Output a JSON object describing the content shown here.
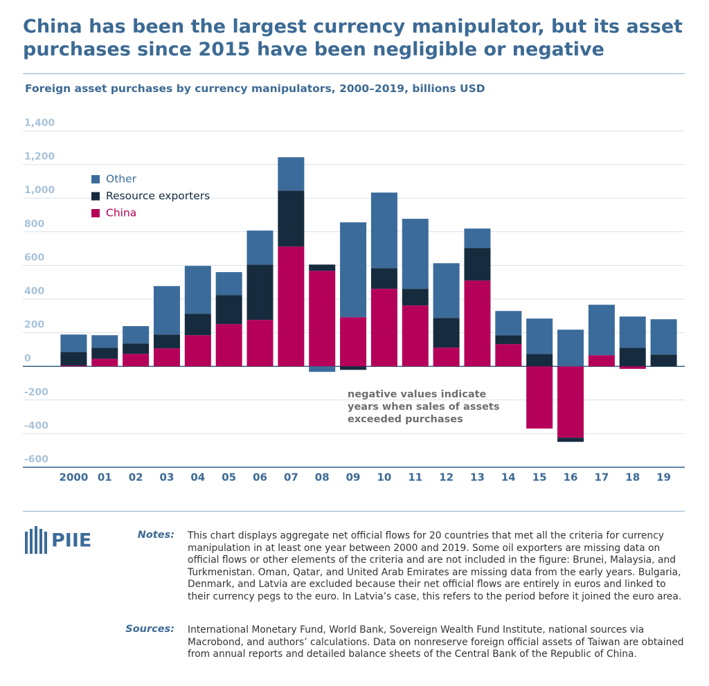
{
  "chart_data": {
    "type": "stacked-bar",
    "title": "China has been the largest currency manipulator, but its asset purchases since 2015 have been negligible or negative",
    "subtitle": "Foreign asset purchases by currency manipulators, 2000–2019, billions USD",
    "categories": [
      "2000",
      "01",
      "02",
      "03",
      "04",
      "05",
      "06",
      "07",
      "08",
      "09",
      "10",
      "11",
      "12",
      "13",
      "14",
      "15",
      "16",
      "17",
      "18",
      "19"
    ],
    "series": [
      {
        "name": "China",
        "color": "#b5005a",
        "values": [
          5,
          45,
          74,
          107,
          185,
          251,
          276,
          712,
          568,
          292,
          461,
          362,
          111,
          510,
          132,
          -370,
          -424,
          66,
          -15,
          0
        ]
      },
      {
        "name": "Resource exporters",
        "color": "#172b3e",
        "values": [
          81,
          66,
          62,
          82,
          128,
          173,
          329,
          333,
          37,
          -21,
          123,
          99,
          177,
          194,
          53,
          74,
          -25,
          0,
          111,
          70
        ]
      },
      {
        "name": "Other",
        "color": "#3a6b9a",
        "values": [
          103,
          74,
          103,
          288,
          284,
          136,
          202,
          198,
          -33,
          564,
          449,
          416,
          325,
          115,
          144,
          210,
          218,
          300,
          185,
          210
        ]
      }
    ],
    "ylim": [
      -600,
      1400
    ],
    "yticks": [
      -600,
      -400,
      -200,
      0,
      200,
      400,
      600,
      800,
      {
        "value": 1000,
        "label": "1,000"
      },
      {
        "value": 1200,
        "label": "1,200"
      },
      {
        "value": 1400,
        "label": "1,400"
      }
    ],
    "grid": true,
    "legend": "upper-left",
    "annotation": [
      "negative values indicate",
      "years when sales of assets",
      "exceeded purchases"
    ]
  },
  "logo": "PIIE",
  "notes": {
    "label": "Notes:",
    "text": "This chart displays aggregate net official flows for 20 countries that met all the criteria for currency manipulation in at least one year between 2000 and 2019. Some oil exporters are missing data on official flows or other elements of the criteria and are not included in the figure: Brunei, Malaysia, and Turkmenistan. Oman, Qatar, and United Arab Emirates are missing data from the early years. Bulgaria, Denmark, and Latvia are excluded because their net official flows are entirely in euros and linked to their currency pegs to the euro. In Latvia’s case, this refers to the period before it joined the euro area."
  },
  "sources": {
    "label": "Sources:",
    "text": "International Monetary Fund, World Bank, Sovereign Wealth Fund Institute, national sources via Macrobond, and authors’ calculations. Data on nonreserve foreign official assets of Taiwan are obtained from annual reports and detailed balance sheets of the Central Bank of the Republic of China."
  }
}
